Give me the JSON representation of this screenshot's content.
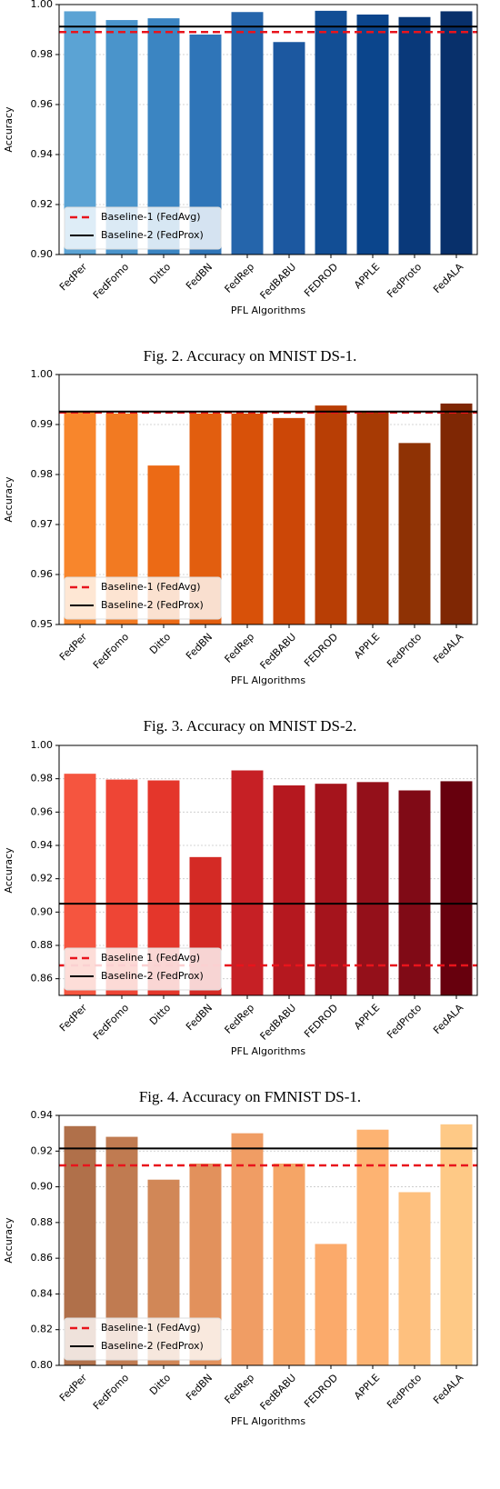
{
  "chart_data": [
    {
      "type": "bar",
      "caption": "Fig. 2.  Accuracy on MNIST DS-1.",
      "xlabel": "PFL Algorithms",
      "ylabel": "Accuracy",
      "categories": [
        "FedPer",
        "FedFomo",
        "Ditto",
        "FedBN",
        "FedRep",
        "FedBABU",
        "FEDROD",
        "APPLE",
        "FedProto",
        "FedALA"
      ],
      "values": [
        0.9973,
        0.9938,
        0.9945,
        0.988,
        0.997,
        0.985,
        0.9975,
        0.996,
        0.995,
        0.9973
      ],
      "colors": [
        "#5ba3d4",
        "#4a94cb",
        "#3b85c2",
        "#2f75b8",
        "#2565ab",
        "#1c58a0",
        "#124e95",
        "#0b458c",
        "#09397a",
        "#08306b"
      ],
      "baselines": [
        {
          "name": "Baseline-1 (FedAvg)",
          "value": 0.989,
          "color": "#e8141c",
          "dashed": true
        },
        {
          "name": "Baseline-2 (FedProx)",
          "value": 0.9912,
          "color": "#000000",
          "dashed": false
        }
      ],
      "ylim": [
        0.9,
        1.0
      ],
      "yticks": [
        {
          "value": 0.9,
          "label": "0.90"
        },
        0.92,
        0.94,
        0.96,
        0.98,
        {
          "value": 1.0,
          "label": "1.00"
        }
      ],
      "grid": true,
      "legend": "lower left"
    },
    {
      "type": "bar",
      "caption": "Fig. 3.  Accuracy on MNIST DS-2.",
      "xlabel": "PFL Algorithms",
      "ylabel": "Accuracy",
      "categories": [
        "FedPer",
        "FedFomo",
        "Ditto",
        "FedBN",
        "FedRep",
        "FedBABU",
        "FEDROD",
        "APPLE",
        "FedProto",
        "FedALA"
      ],
      "values": [
        0.9925,
        0.9922,
        0.9818,
        0.9922,
        0.9922,
        0.9913,
        0.9938,
        0.9927,
        0.9863,
        0.9942
      ],
      "colors": [
        "#f8862c",
        "#f27a22",
        "#ec6a15",
        "#e25e0f",
        "#d85109",
        "#cc4707",
        "#b83e05",
        "#a73a04",
        "#8f3204",
        "#7f2704"
      ],
      "baselines": [
        {
          "name": "Baseline-1 (FedAvg)",
          "value": 0.9924,
          "color": "#e8141c",
          "dashed": true
        },
        {
          "name": "Baseline-2 (FedProx)",
          "value": 0.9926,
          "color": "#000000",
          "dashed": false
        }
      ],
      "ylim": [
        0.95,
        1.0
      ],
      "yticks": [
        0.95,
        0.96,
        0.97,
        0.98,
        0.99,
        {
          "value": 1.0,
          "label": "1.00"
        }
      ],
      "grid": true,
      "legend": "lower left"
    },
    {
      "type": "bar",
      "caption": "Fig. 4.  Accuracy on FMNIST DS-1.",
      "xlabel": "PFL Algorithms",
      "ylabel": "Accuracy",
      "categories": [
        "FedPer",
        "FedFomo",
        "Ditto",
        "FedBN",
        "FedRep",
        "FedBABU",
        "FEDROD",
        "APPLE",
        "FedProto",
        "FedALA"
      ],
      "values": [
        0.983,
        0.9795,
        0.979,
        0.933,
        0.985,
        0.976,
        0.977,
        0.978,
        0.973,
        0.9785
      ],
      "colors": [
        "#f5553f",
        "#ee4535",
        "#e4362b",
        "#d42a25",
        "#c62025",
        "#b5181f",
        "#a5141c",
        "#94101a",
        "#800a16",
        "#67000d"
      ],
      "baselines": [
        {
          "name": "Baseline 1 (FedAvg)",
          "value": 0.868,
          "color": "#e8141c",
          "dashed": true
        },
        {
          "name": "Baseline-2 (FedProx)",
          "value": 0.905,
          "color": "#000000",
          "dashed": false
        }
      ],
      "ylim": [
        0.85,
        1.0
      ],
      "yticks": [
        0.86,
        0.88,
        {
          "value": 0.9,
          "label": "0.90"
        },
        0.92,
        0.94,
        0.96,
        0.98,
        {
          "value": 1.0,
          "label": "1.00"
        }
      ],
      "grid": true,
      "legend": "lower left"
    },
    {
      "type": "bar",
      "xlabel": "PFL Algorithms",
      "ylabel": "Accuracy",
      "categories": [
        "FedPer",
        "FedFomo",
        "Ditto",
        "FedBN",
        "FedRep",
        "FedBABU",
        "FEDROD",
        "APPLE",
        "FedProto",
        "FedALA"
      ],
      "values": [
        0.934,
        0.928,
        0.904,
        0.913,
        0.93,
        0.913,
        0.868,
        0.932,
        0.897,
        0.935
      ],
      "colors": [
        "#b0704a",
        "#c07b51",
        "#d18757",
        "#e2915c",
        "#f09d64",
        "#f5a566",
        "#fbaa6b",
        "#fdb372",
        "#fec07e",
        "#fec986"
      ],
      "baselines": [
        {
          "name": "Baseline-1 (FedAvg)",
          "value": 0.912,
          "color": "#e8141c",
          "dashed": true
        },
        {
          "name": "Baseline-2 (FedProx)",
          "value": 0.9215,
          "color": "#000000",
          "dashed": false
        }
      ],
      "ylim": [
        0.8,
        0.94
      ],
      "yticks": [
        {
          "value": 0.8,
          "label": "0.80"
        },
        0.82,
        0.84,
        0.86,
        0.88,
        {
          "value": 0.9,
          "label": "0.90"
        },
        0.92,
        0.94
      ],
      "grid": true,
      "legend": "lower left"
    }
  ]
}
